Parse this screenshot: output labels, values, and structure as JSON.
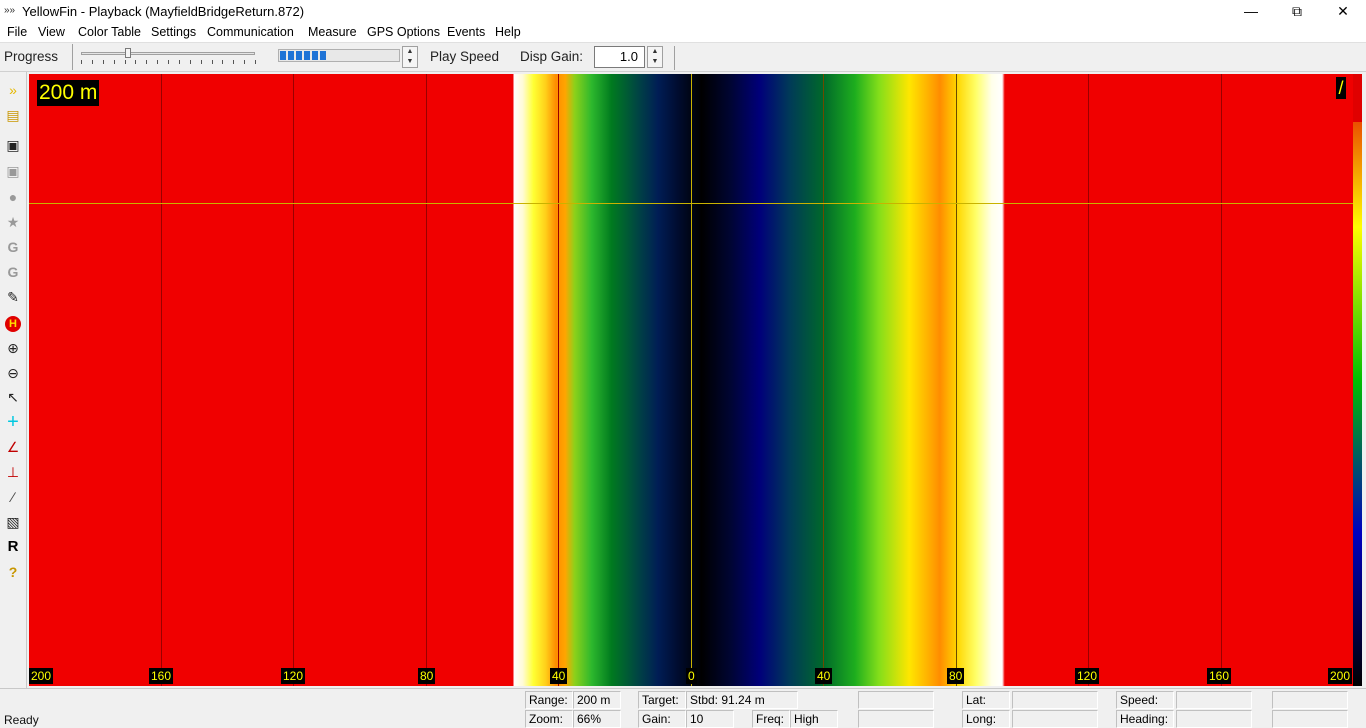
{
  "window": {
    "title": "YellowFin - Playback (MayfieldBridgeReturn.872)",
    "minimize_icon": "minimize-icon",
    "maximize_icon": "restore-icon",
    "close_icon": "close-icon"
  },
  "menu": [
    "File",
    "View",
    "Color Table",
    "Settings",
    "Communication",
    "Measure",
    "GPS Options",
    "Events",
    "Help"
  ],
  "toolbar": {
    "progress_label": "Progress",
    "progress_value": 0.27,
    "play_speed_label": "Play Speed",
    "play_speed_level": 0.4,
    "disp_gain_label": "Disp Gain:",
    "disp_gain_value": "1.0"
  },
  "sidebar": [
    "play-forward-icon",
    "open-folder-icon",
    "save-icon",
    "save-disabled-icon",
    "balloon-icon",
    "star-icon",
    "gps-g-icon",
    "gps-g2-icon",
    "eraser-icon",
    "h-marker-icon",
    "zoom-in-icon",
    "zoom-out-icon",
    "pointer-icon",
    "crosshair-icon",
    "measure-angle-icon",
    "measure-distance-icon",
    "ruler-icon",
    "color-table-icon",
    "r-icon",
    "help-icon"
  ],
  "sonar": {
    "range_label": "200 m",
    "mark_label": "/",
    "axis_labels": [
      "200",
      "160",
      "120",
      "80",
      "40",
      "0",
      "40",
      "80",
      "120",
      "160",
      "200"
    ]
  },
  "status": {
    "ready": "Ready",
    "range_label": "Range:",
    "range_value": "200 m",
    "zoom_label": "Zoom:",
    "zoom_value": "66%",
    "target_label": "Target:",
    "target_value": "Stbd: 91.24 m",
    "gain_label": "Gain:",
    "gain_value": "10",
    "freq_label": "Freq:",
    "freq_value": "High",
    "lat_label": "Lat:",
    "lat_value": "",
    "long_label": "Long:",
    "long_value": "",
    "speed_label": "Speed:",
    "speed_value": "",
    "heading_label": "Heading:",
    "heading_value": ""
  }
}
